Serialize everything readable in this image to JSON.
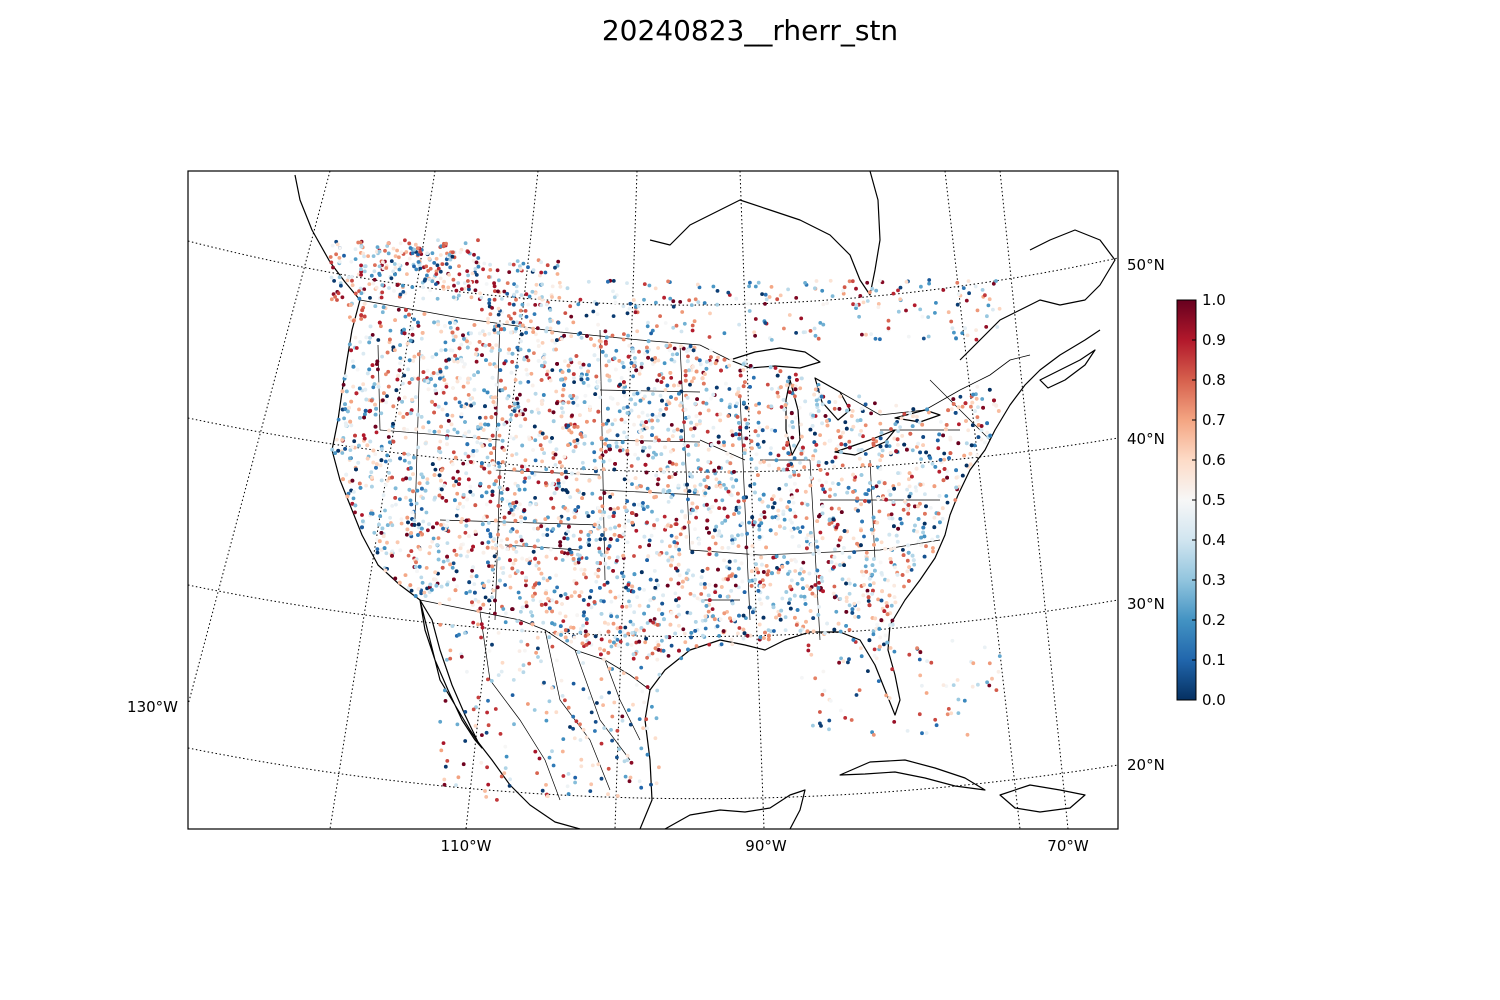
{
  "title": "20240823__rherr_stn",
  "map": {
    "projection": "lambert-conformal",
    "region": "CONUS",
    "longitude_labels": [
      "110°W",
      "90°W",
      "70°W",
      "130°W"
    ],
    "latitude_labels": [
      "50°N",
      "40°N",
      "30°N",
      "20°N"
    ],
    "station_count": "dense (many thousands of stations)"
  },
  "colorbar": {
    "colormap": "RdBu_r",
    "min": 0.0,
    "max": 1.0,
    "ticks": [
      "0.0",
      "0.1",
      "0.2",
      "0.3",
      "0.4",
      "0.5",
      "0.6",
      "0.7",
      "0.8",
      "0.9",
      "1.0"
    ],
    "colors": [
      "#053061",
      "#2166ac",
      "#4393c3",
      "#92c5de",
      "#d1e5f0",
      "#f7f7f7",
      "#fddbc7",
      "#f4a582",
      "#d6604d",
      "#b2182b",
      "#67001f"
    ]
  }
}
